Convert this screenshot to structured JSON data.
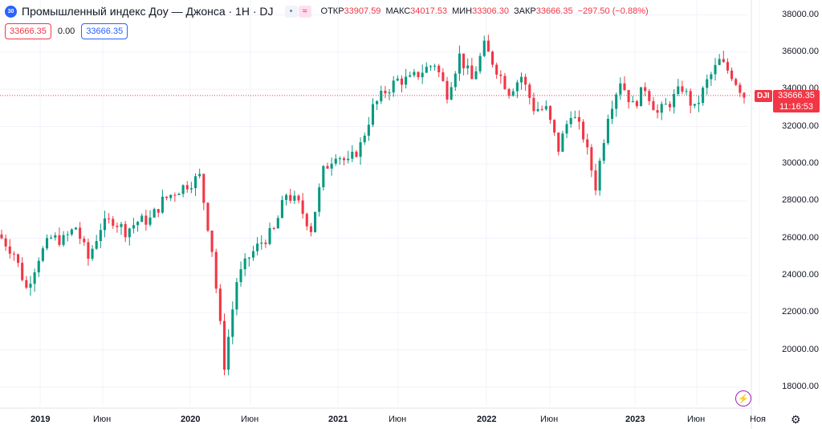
{
  "header": {
    "logo": "30",
    "title": "Промышленный индекс Доу — Джонса · 1Н · DJ",
    "btn1": "•",
    "btn2": "≈",
    "open_label": "ОТКР",
    "open": "33907.59",
    "high_label": "МАКС",
    "high": "34017.53",
    "low_label": "МИН",
    "low": "33306.30",
    "close_label": "ЗАКР",
    "close": "33666.35",
    "change": "−297.50 (−0.88%)"
  },
  "price_box_1": "33666.35",
  "spread": "0.00",
  "price_box_2": "33666.35",
  "price_tag": {
    "symbol": "DJI",
    "price": "33666.35",
    "countdown": "11:16:53"
  },
  "colors": {
    "up": "#089981",
    "down": "#f23645",
    "grid": "#f0f3fa"
  },
  "icons": {
    "alert": "bolt-icon",
    "settings": "gear-icon"
  },
  "chart_data": {
    "type": "candlestick",
    "title": "Промышленный индекс Доу — Джонса · 1Н · DJ",
    "interval": "1W",
    "current_price": 33666.35,
    "ylim": [
      17000,
      38800
    ],
    "yticks": [
      18000,
      20000,
      22000,
      24000,
      26000,
      28000,
      30000,
      32000,
      34000,
      36000,
      38000
    ],
    "ytick_labels": [
      "18000.00",
      "20000.00",
      "22000.00",
      "24000.00",
      "26000.00",
      "28000.00",
      "30000.00",
      "32000.00",
      "34000.00",
      "36000.00",
      "38000.00"
    ],
    "xtick_labels": [
      "2019",
      "Июн",
      "2020",
      "Июн",
      "2021",
      "Июн",
      "2022",
      "Июн",
      "2023",
      "Июн",
      "Ноя"
    ],
    "grid": true,
    "close_series": [
      {
        "t": "2018-10",
        "v": 26000
      },
      {
        "t": "2018-11",
        "v": 25200
      },
      {
        "t": "2018-12",
        "v": 23300
      },
      {
        "t": "2019-01",
        "v": 25000
      },
      {
        "t": "2019-02",
        "v": 26000
      },
      {
        "t": "2019-03",
        "v": 25900
      },
      {
        "t": "2019-04",
        "v": 26600
      },
      {
        "t": "2019-05",
        "v": 24900
      },
      {
        "t": "2019-06",
        "v": 26600
      },
      {
        "t": "2019-07",
        "v": 27000
      },
      {
        "t": "2019-08",
        "v": 26400
      },
      {
        "t": "2019-09",
        "v": 26900
      },
      {
        "t": "2019-10",
        "v": 27000
      },
      {
        "t": "2019-11",
        "v": 28000
      },
      {
        "t": "2019-12",
        "v": 28500
      },
      {
        "t": "2020-01",
        "v": 28900
      },
      {
        "t": "2020-02",
        "v": 29300
      },
      {
        "t": "2020-02b",
        "v": 25400
      },
      {
        "t": "2020-03",
        "v": 19200
      },
      {
        "t": "2020-04",
        "v": 23700
      },
      {
        "t": "2020-05",
        "v": 25000
      },
      {
        "t": "2020-06",
        "v": 25800
      },
      {
        "t": "2020-07",
        "v": 26400
      },
      {
        "t": "2020-08",
        "v": 28400
      },
      {
        "t": "2020-09",
        "v": 27800
      },
      {
        "t": "2020-10",
        "v": 26500
      },
      {
        "t": "2020-11",
        "v": 29600
      },
      {
        "t": "2020-12",
        "v": 30600
      },
      {
        "t": "2021-01",
        "v": 30000
      },
      {
        "t": "2021-02",
        "v": 31000
      },
      {
        "t": "2021-03",
        "v": 33000
      },
      {
        "t": "2021-04",
        "v": 33900
      },
      {
        "t": "2021-05",
        "v": 34500
      },
      {
        "t": "2021-06",
        "v": 34500
      },
      {
        "t": "2021-07",
        "v": 35000
      },
      {
        "t": "2021-08",
        "v": 35400
      },
      {
        "t": "2021-09",
        "v": 33800
      },
      {
        "t": "2021-10",
        "v": 35800
      },
      {
        "t": "2021-11",
        "v": 34500
      },
      {
        "t": "2021-12",
        "v": 36300
      },
      {
        "t": "2022-01",
        "v": 35100
      },
      {
        "t": "2022-02",
        "v": 33900
      },
      {
        "t": "2022-03",
        "v": 34700
      },
      {
        "t": "2022-04",
        "v": 33000
      },
      {
        "t": "2022-05",
        "v": 32900
      },
      {
        "t": "2022-06",
        "v": 30800
      },
      {
        "t": "2022-07",
        "v": 32800
      },
      {
        "t": "2022-08",
        "v": 31500
      },
      {
        "t": "2022-09",
        "v": 28800
      },
      {
        "t": "2022-10",
        "v": 32700
      },
      {
        "t": "2022-11",
        "v": 34500
      },
      {
        "t": "2022-12",
        "v": 33100
      },
      {
        "t": "2023-01",
        "v": 34100
      },
      {
        "t": "2023-02",
        "v": 32700
      },
      {
        "t": "2023-03",
        "v": 33300
      },
      {
        "t": "2023-04",
        "v": 34100
      },
      {
        "t": "2023-05",
        "v": 32900
      },
      {
        "t": "2023-06",
        "v": 34400
      },
      {
        "t": "2023-07",
        "v": 35500
      },
      {
        "t": "2023-08",
        "v": 34800
      },
      {
        "t": "2023-09",
        "v": 33666
      }
    ]
  }
}
